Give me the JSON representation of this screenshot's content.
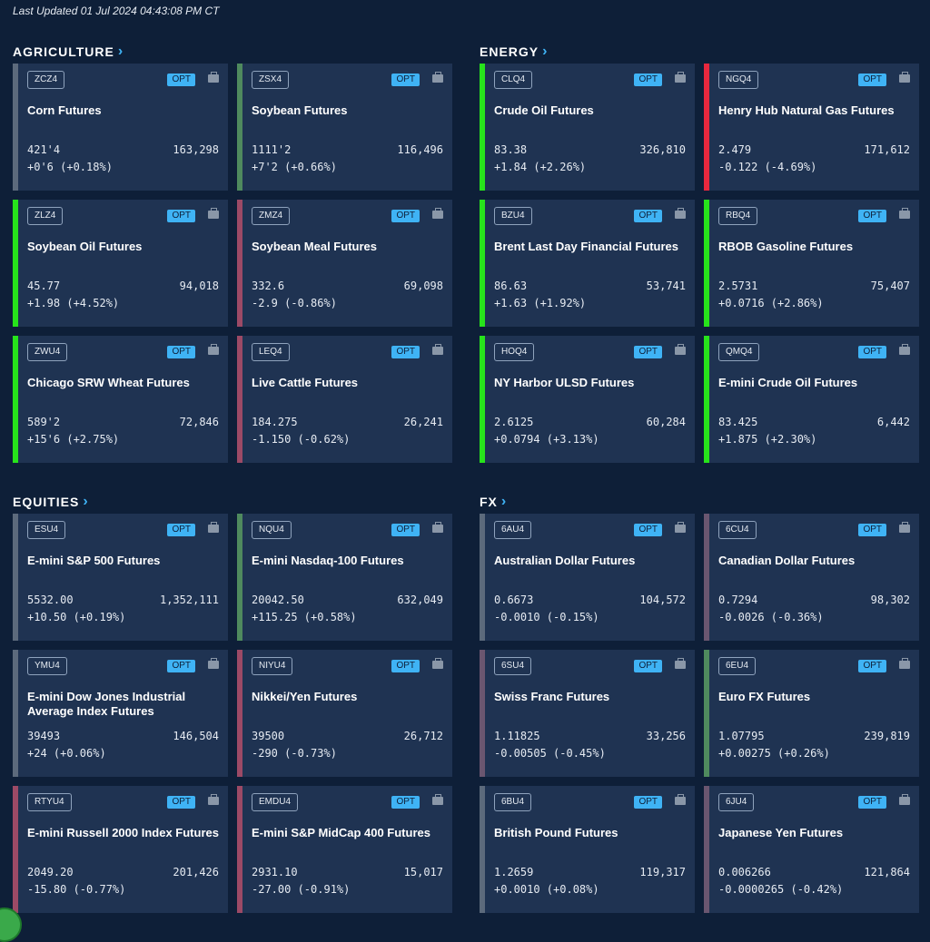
{
  "last_updated": "Last Updated 01 Jul 2024 04:43:08 PM CT",
  "opt_label": "OPT",
  "colors": {
    "up_strong": "#27e31b",
    "up": "#4f8a5e",
    "down_strong": "#e8283e",
    "down": "#9c4a66",
    "flat": "#5c6a7c"
  },
  "sections": [
    {
      "title": "AGRICULTURE",
      "cards": [
        {
          "code": "ZCZ4",
          "name": "Corn Futures",
          "price": "421'4",
          "volume": "163,298",
          "change": "+0'6 (+0.18%)",
          "bar": "#5c6a7c"
        },
        {
          "code": "ZSX4",
          "name": "Soybean Futures",
          "price": "1111'2",
          "volume": "116,496",
          "change": "+7'2 (+0.66%)",
          "bar": "#4f8a5e"
        },
        {
          "code": "ZLZ4",
          "name": "Soybean Oil Futures",
          "price": "45.77",
          "volume": "94,018",
          "change": "+1.98 (+4.52%)",
          "bar": "#27e31b"
        },
        {
          "code": "ZMZ4",
          "name": "Soybean Meal Futures",
          "price": "332.6",
          "volume": "69,098",
          "change": "-2.9 (-0.86%)",
          "bar": "#9c4a66"
        },
        {
          "code": "ZWU4",
          "name": "Chicago SRW Wheat Futures",
          "price": "589'2",
          "volume": "72,846",
          "change": "+15'6 (+2.75%)",
          "bar": "#27e31b"
        },
        {
          "code": "LEQ4",
          "name": "Live Cattle Futures",
          "price": "184.275",
          "volume": "26,241",
          "change": "-1.150 (-0.62%)",
          "bar": "#9c4a66"
        }
      ]
    },
    {
      "title": "ENERGY",
      "cards": [
        {
          "code": "CLQ4",
          "name": "Crude Oil Futures",
          "price": "83.38",
          "volume": "326,810",
          "change": "+1.84 (+2.26%)",
          "bar": "#27e31b"
        },
        {
          "code": "NGQ4",
          "name": "Henry Hub Natural Gas Futures",
          "price": "2.479",
          "volume": "171,612",
          "change": "-0.122 (-4.69%)",
          "bar": "#e8283e"
        },
        {
          "code": "BZU4",
          "name": "Brent Last Day Financial Futures",
          "price": "86.63",
          "volume": "53,741",
          "change": "+1.63 (+1.92%)",
          "bar": "#27e31b"
        },
        {
          "code": "RBQ4",
          "name": "RBOB Gasoline Futures",
          "price": "2.5731",
          "volume": "75,407",
          "change": "+0.0716 (+2.86%)",
          "bar": "#27e31b"
        },
        {
          "code": "HOQ4",
          "name": "NY Harbor ULSD Futures",
          "price": "2.6125",
          "volume": "60,284",
          "change": "+0.0794 (+3.13%)",
          "bar": "#27e31b"
        },
        {
          "code": "QMQ4",
          "name": "E-mini Crude Oil Futures",
          "price": "83.425",
          "volume": "6,442",
          "change": "+1.875 (+2.30%)",
          "bar": "#27e31b"
        }
      ]
    },
    {
      "title": "EQUITIES",
      "cards": [
        {
          "code": "ESU4",
          "name": "E-mini S&P 500 Futures",
          "price": "5532.00",
          "volume": "1,352,111",
          "change": "+10.50 (+0.19%)",
          "bar": "#5c6a7c"
        },
        {
          "code": "NQU4",
          "name": "E-mini Nasdaq-100 Futures",
          "price": "20042.50",
          "volume": "632,049",
          "change": "+115.25 (+0.58%)",
          "bar": "#4f8a5e"
        },
        {
          "code": "YMU4",
          "name": "E-mini Dow Jones Industrial Average Index Futures",
          "price": "39493",
          "volume": "146,504",
          "change": "+24 (+0.06%)",
          "bar": "#5c6a7c"
        },
        {
          "code": "NIYU4",
          "name": "Nikkei/Yen Futures",
          "price": "39500",
          "volume": "26,712",
          "change": "-290 (-0.73%)",
          "bar": "#9c4a66"
        },
        {
          "code": "RTYU4",
          "name": "E-mini  Russell 2000 Index Futures",
          "price": "2049.20",
          "volume": "201,426",
          "change": "-15.80 (-0.77%)",
          "bar": "#9c4a66"
        },
        {
          "code": "EMDU4",
          "name": "E-mini S&P MidCap 400 Futures",
          "price": "2931.10",
          "volume": "15,017",
          "change": "-27.00 (-0.91%)",
          "bar": "#9c4a66"
        }
      ]
    },
    {
      "title": "FX",
      "cards": [
        {
          "code": "6AU4",
          "name": "Australian Dollar Futures",
          "price": "0.6673",
          "volume": "104,572",
          "change": "-0.0010 (-0.15%)",
          "bar": "#5c6a7c"
        },
        {
          "code": "6CU4",
          "name": "Canadian Dollar Futures",
          "price": "0.7294",
          "volume": "98,302",
          "change": "-0.0026 (-0.36%)",
          "bar": "#6a5670"
        },
        {
          "code": "6SU4",
          "name": "Swiss Franc Futures",
          "price": "1.11825",
          "volume": "33,256",
          "change": "-0.00505 (-0.45%)",
          "bar": "#6a5670"
        },
        {
          "code": "6EU4",
          "name": "Euro FX Futures",
          "price": "1.07795",
          "volume": "239,819",
          "change": "+0.00275 (+0.26%)",
          "bar": "#4f8a5e"
        },
        {
          "code": "6BU4",
          "name": "British Pound Futures",
          "price": "1.2659",
          "volume": "119,317",
          "change": "+0.0010 (+0.08%)",
          "bar": "#5c6a7c"
        },
        {
          "code": "6JU4",
          "name": "Japanese Yen Futures",
          "price": "0.006266",
          "volume": "121,864",
          "change": "-0.0000265 (-0.42%)",
          "bar": "#6a5670"
        }
      ]
    }
  ]
}
